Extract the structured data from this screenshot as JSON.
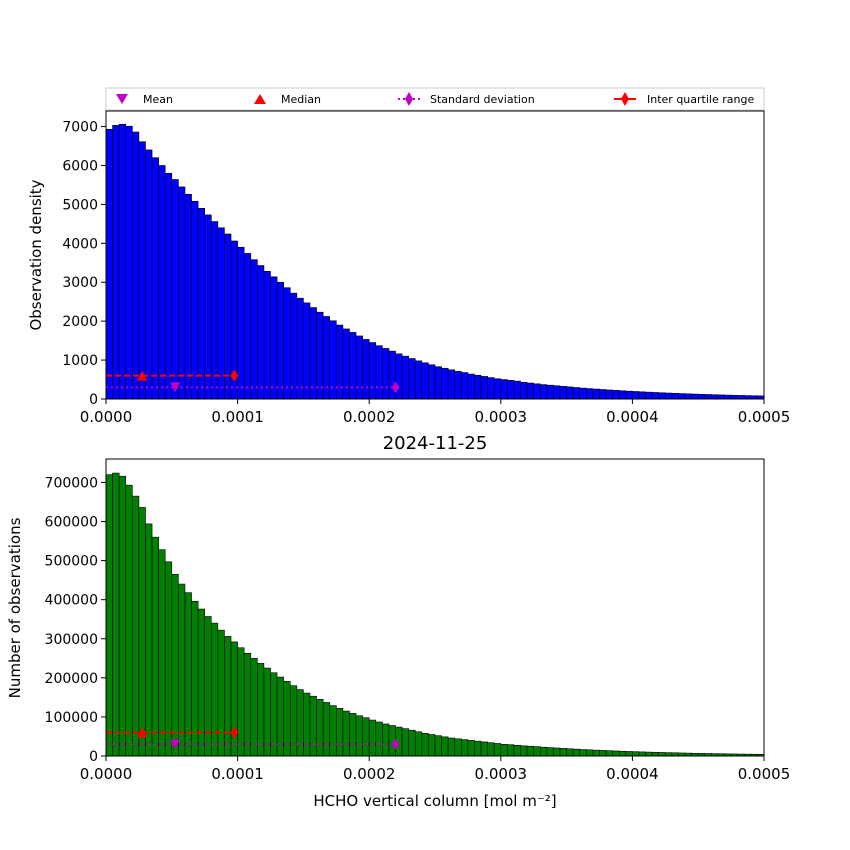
{
  "figure": {
    "title": "2024-11-25",
    "legend": {
      "placement": "top",
      "entries": [
        {
          "label": "Mean",
          "marker": "triangle-down",
          "color": "#bf00bf"
        },
        {
          "label": "Median",
          "marker": "triangle-up",
          "color": "#ff0000"
        },
        {
          "label": "Standard deviation",
          "marker": "diamond",
          "line": "dotted",
          "color": "#bf00bf"
        },
        {
          "label": "Inter quartile range",
          "marker": "diamond",
          "line": "solid",
          "color": "#ff0000"
        }
      ]
    }
  },
  "chart_data": [
    {
      "type": "bar",
      "ylabel": "Observation density",
      "xlabel": "",
      "xlim": [
        0,
        0.0005
      ],
      "ylim": [
        0,
        7400
      ],
      "xticks": [
        "0.0000",
        "0.0001",
        "0.0002",
        "0.0003",
        "0.0004",
        "0.0005"
      ],
      "yticks": [
        "0",
        "1000",
        "2000",
        "3000",
        "4000",
        "5000",
        "6000",
        "7000"
      ],
      "color": "#0000ff",
      "bin_width": 5e-06,
      "values": [
        6930,
        7030,
        7060,
        7010,
        6860,
        6610,
        6400,
        6200,
        6000,
        5800,
        5640,
        5450,
        5260,
        5080,
        4900,
        4730,
        4560,
        4400,
        4240,
        4060,
        3900,
        3740,
        3580,
        3430,
        3280,
        3140,
        3000,
        2860,
        2720,
        2590,
        2470,
        2350,
        2230,
        2120,
        2010,
        1900,
        1800,
        1710,
        1620,
        1530,
        1450,
        1370,
        1300,
        1230,
        1160,
        1100,
        1040,
        980,
        930,
        880,
        830,
        790,
        750,
        710,
        680,
        640,
        610,
        580,
        550,
        520,
        500,
        480,
        460,
        430,
        410,
        390,
        370,
        355,
        340,
        325,
        310,
        295,
        280,
        268,
        256,
        244,
        232,
        222,
        212,
        202,
        193,
        184,
        176,
        168,
        160,
        153,
        146,
        139,
        133,
        127,
        121,
        116,
        110,
        105,
        100,
        96,
        92,
        88,
        84,
        80
      ],
      "stats": {
        "mean": 5.25e-05,
        "median": 2.75e-05,
        "std_range": [
          0,
          0.00022
        ],
        "iqr_range": [
          0,
          9.75e-05
        ],
        "median_y": 600,
        "std_y": 300
      }
    },
    {
      "type": "bar",
      "ylabel": "Number of observations",
      "xlabel": "HCHO vertical column [mol m⁻²]",
      "xlim": [
        0,
        0.0005
      ],
      "ylim": [
        0,
        760000
      ],
      "xticks": [
        "0.0000",
        "0.0001",
        "0.0002",
        "0.0003",
        "0.0004",
        "0.0005"
      ],
      "yticks": [
        "0",
        "100000",
        "200000",
        "300000",
        "400000",
        "500000",
        "600000",
        "700000"
      ],
      "color": "#008000",
      "bin_width": 5e-06,
      "values": [
        720000,
        724000,
        716000,
        693000,
        665000,
        636000,
        594000,
        560000,
        528000,
        497000,
        465000,
        440000,
        418000,
        396000,
        376000,
        357000,
        340000,
        322000,
        306000,
        292000,
        277000,
        263000,
        250000,
        237000,
        225000,
        213000,
        202000,
        191000,
        180000,
        170000,
        161000,
        153000,
        145000,
        137000,
        129000,
        122000,
        115000,
        109000,
        103000,
        98000,
        92000,
        87000,
        82000,
        78000,
        74000,
        70000,
        66000,
        62000,
        58000,
        55000,
        52000,
        49000,
        46000,
        44000,
        42000,
        40000,
        38000,
        36000,
        34000,
        32000,
        30000,
        29000,
        27500,
        26000,
        25000,
        24000,
        22500,
        21500,
        20500,
        19500,
        18500,
        17500,
        16500,
        15800,
        15000,
        14300,
        13600,
        12900,
        12200,
        11600,
        11000,
        10500,
        10000,
        9500,
        9000,
        8600,
        8200,
        7800,
        7400,
        7000,
        6700,
        6400,
        6100,
        5800,
        5500,
        5200,
        5000,
        4800,
        4600,
        4400
      ],
      "stats": {
        "mean": 5.25e-05,
        "median": 2.75e-05,
        "std_range": [
          0,
          0.00022
        ],
        "iqr_range": [
          0,
          9.75e-05
        ],
        "median_y": 60000,
        "std_y": 30000
      }
    }
  ]
}
